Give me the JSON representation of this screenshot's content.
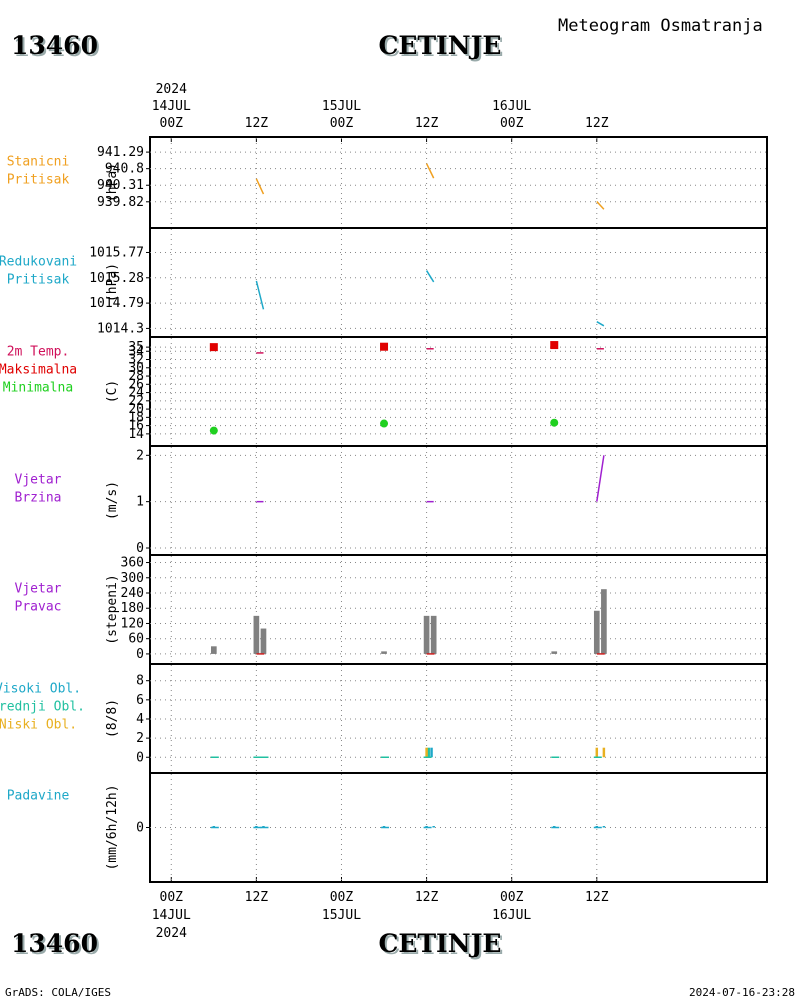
{
  "header": {
    "station_id": "13460",
    "station_name": "CETINJE",
    "title": "Meteogram Osmatranja"
  },
  "footer": {
    "credit": "GrADS: COLA/IGES",
    "timestamp": "2024-07-16-23:28"
  },
  "colors": {
    "orange": "#f0a020",
    "cyan": "#1ea8c8",
    "crimson": "#d0105a",
    "red": "#e00000",
    "green": "#20d020",
    "purple": "#a020d0",
    "gray": "#808080",
    "teal": "#20c0a0",
    "gold": "#e8b020"
  },
  "chart_data": {
    "type": "line",
    "title": "Meteogram Osmatranja",
    "x_axis": {
      "unit": "hours since 2024-07-14 00Z",
      "range": [
        -3,
        84
      ],
      "ticks": [
        {
          "t": 0,
          "label": "00Z",
          "date": "14JUL",
          "year": "2024"
        },
        {
          "t": 12,
          "label": "12Z"
        },
        {
          "t": 24,
          "label": "00Z",
          "date": "15JUL"
        },
        {
          "t": 36,
          "label": "12Z"
        },
        {
          "t": 48,
          "label": "00Z",
          "date": "16JUL"
        },
        {
          "t": 60,
          "label": "12Z"
        }
      ]
    },
    "panels": [
      {
        "id": "station_pressure",
        "labels": [
          "Stanicni",
          "Pritisak"
        ],
        "label_color": "#f0a020",
        "ylabel": "(hPa)",
        "ylim": [
          939.4,
          941.5
        ],
        "yticks": [
          "941.29",
          "940.8",
          "940.31",
          "939.82"
        ],
        "series": [
          {
            "name": "Stanicni Pritisak",
            "color": "#f0a020",
            "type": "line",
            "segments": [
              [
                [
                  12,
                  940.5
                ],
                [
                  13,
                  940.05
                ]
              ],
              [
                [
                  36,
                  940.95
                ],
                [
                  37,
                  940.52
                ]
              ],
              [
                [
                  60,
                  939.83
                ],
                [
                  61,
                  939.6
                ]
              ]
            ]
          }
        ]
      },
      {
        "id": "reduced_pressure",
        "labels": [
          "Redukovani",
          "Pritisak"
        ],
        "label_color": "#1ea8c8",
        "ylabel": "(hPa)",
        "ylim": [
          1014.25,
          1016.05
        ],
        "yticks": [
          "1015.77",
          "1015.28",
          "1014.79",
          "1014.3"
        ],
        "series": [
          {
            "name": "Redukovani Pritisak",
            "color": "#1ea8c8",
            "type": "line",
            "segments": [
              [
                [
                  12,
                  1015.22
                ],
                [
                  13,
                  1014.67
                ]
              ],
              [
                [
                  36,
                  1015.42
                ],
                [
                  37,
                  1015.2
                ]
              ],
              [
                [
                  60,
                  1014.43
                ],
                [
                  61,
                  1014.35
                ]
              ]
            ]
          }
        ]
      },
      {
        "id": "temperature",
        "labels": [
          "2m Temp.",
          "Maksimalna",
          "Minimalna"
        ],
        "label_colors": [
          "#d0105a",
          "#e00000",
          "#20d020"
        ],
        "ylabel": "(C)",
        "ylim": [
          13,
          36
        ],
        "yticks": [
          "14",
          "16",
          "18",
          "20",
          "22",
          "24",
          "26",
          "28",
          "30",
          "32",
          "34",
          "35"
        ],
        "series": [
          {
            "name": "2m Temp.",
            "color": "#d0105a",
            "type": "line",
            "segments": [
              [
                [
                  12,
                  33.6
                ],
                [
                  13,
                  33.6
                ]
              ],
              [
                [
                  36,
                  34.6
                ],
                [
                  37,
                  34.6
                ]
              ],
              [
                [
                  60,
                  34.6
                ],
                [
                  61,
                  34.6
                ]
              ]
            ]
          },
          {
            "name": "Maksimalna",
            "color": "#e00000",
            "type": "square",
            "points": [
              [
                6,
                35.0
              ],
              [
                30,
                35.1
              ],
              [
                54,
                35.5
              ]
            ]
          },
          {
            "name": "Minimalna",
            "color": "#20d020",
            "type": "circle",
            "points": [
              [
                6,
                14.8
              ],
              [
                30,
                16.5
              ],
              [
                54,
                16.7
              ]
            ]
          }
        ]
      },
      {
        "id": "wind_speed",
        "labels": [
          "Vjetar",
          "Brzina"
        ],
        "label_color": "#a020d0",
        "ylabel": "(m/s)",
        "ylim": [
          0,
          2.05
        ],
        "yticks": [
          "0",
          "1",
          "2"
        ],
        "series": [
          {
            "name": "Vjetar Brzina",
            "color": "#a020d0",
            "type": "line",
            "segments": [
              [
                [
                  12,
                  1
                ],
                [
                  13,
                  1
                ]
              ],
              [
                [
                  36,
                  1
                ],
                [
                  37,
                  1
                ]
              ],
              [
                [
                  60,
                  1
                ],
                [
                  61,
                  2
                ]
              ]
            ]
          }
        ]
      },
      {
        "id": "wind_direction",
        "labels": [
          "Vjetar",
          "Pravac"
        ],
        "label_color": "#a020d0",
        "ylabel": "(stepeni)",
        "ylim": [
          -20,
          370
        ],
        "yticks": [
          "0",
          "60",
          "120",
          "180",
          "240",
          "300",
          "360"
        ],
        "bar_width": 0.8,
        "series": [
          {
            "name": "Vjetar Pravac",
            "color": "#808080",
            "type": "bar",
            "bars": [
              [
                6,
                30
              ],
              [
                12,
                150
              ],
              [
                13,
                100
              ],
              [
                30,
                10
              ],
              [
                36,
                150
              ],
              [
                37,
                150
              ],
              [
                54,
                10
              ],
              [
                60,
                170
              ],
              [
                61,
                255
              ]
            ]
          }
        ]
      },
      {
        "id": "cloud_cover",
        "labels": [
          "Visoki Obl.",
          "Srednji Obl.",
          "Niski Obl."
        ],
        "label_colors": [
          "#1ea8c8",
          "#20c0a0",
          "#e8b020"
        ],
        "ylabel": "(8/8)",
        "ylim": [
          -0.6,
          8.7
        ],
        "yticks": [
          "0",
          "2",
          "4",
          "6",
          "8"
        ],
        "series": [
          {
            "name": "Visoki Obl.",
            "color": "#1ea8c8",
            "type": "bar",
            "bars": [
              [
                36.7,
                1
              ]
            ]
          },
          {
            "name": "Srednji Obl.",
            "color": "#20c0a0",
            "type": "bar",
            "bars": [
              [
                36.3,
                1
              ]
            ]
          },
          {
            "name": "Niski Obl.",
            "color": "#e8b020",
            "type": "bar",
            "bars": [
              [
                36.0,
                1
              ],
              [
                60.0,
                1
              ],
              [
                61.0,
                1
              ]
            ]
          }
        ]
      },
      {
        "id": "precipitation",
        "labels": [
          "Padavine"
        ],
        "label_color": "#1ea8c8",
        "ylabel": "(mm/6h/12h)",
        "ylim": [
          -1.5,
          1.5
        ],
        "yticks": [
          "0"
        ],
        "series": [
          {
            "name": "Padavine",
            "color": "#1ea8c8",
            "type": "bar",
            "bars": [
              [
                6,
                0
              ],
              [
                12,
                0
              ],
              [
                13,
                0
              ],
              [
                30,
                0
              ],
              [
                36,
                0
              ],
              [
                37,
                0
              ],
              [
                54,
                0
              ],
              [
                60,
                0
              ],
              [
                61,
                0
              ]
            ]
          }
        ]
      }
    ]
  }
}
